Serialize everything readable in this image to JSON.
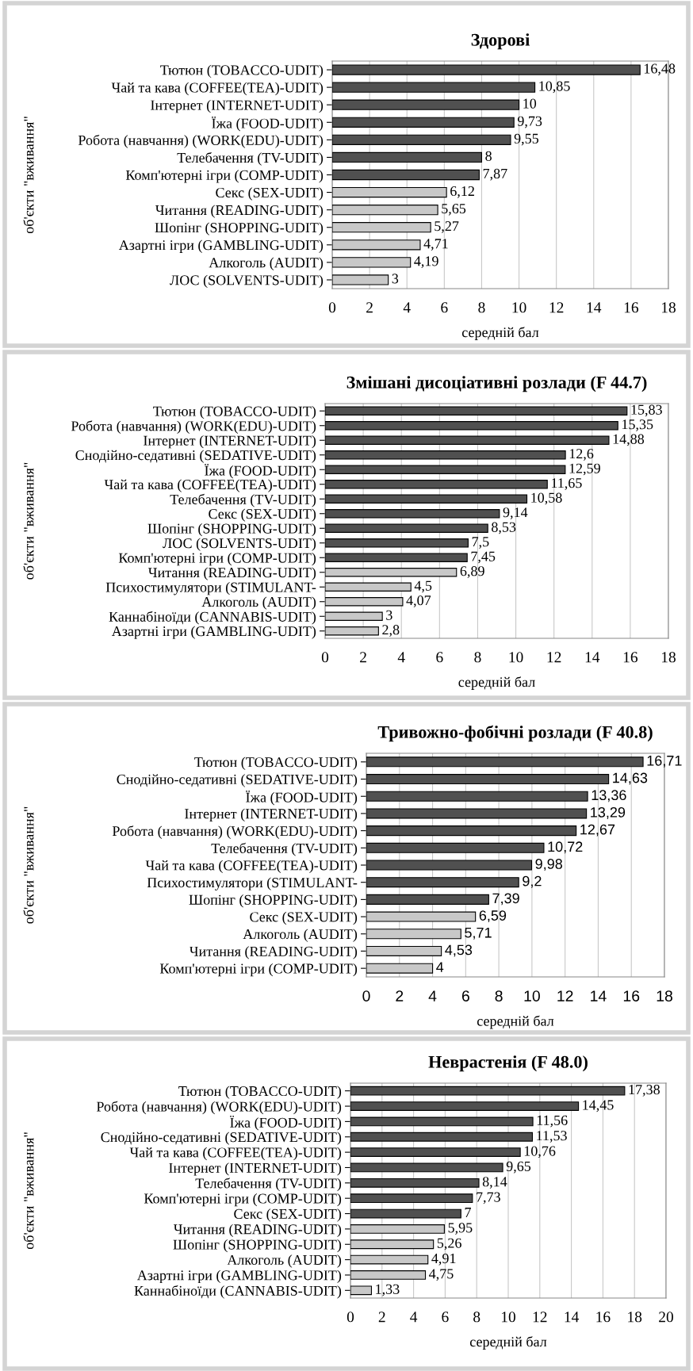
{
  "chart_data": [
    {
      "type": "bar",
      "orientation": "horizontal",
      "title": "Здорові",
      "xlabel": "середній бал",
      "ylabel": "об'єкти \"вживання\"",
      "grid": "x",
      "xlim": [
        0,
        18
      ],
      "xticks": [
        0,
        2,
        4,
        6,
        8,
        10,
        12,
        14,
        16,
        18
      ],
      "categories": [
        "Тютюн (TOBACCO-UDIT)",
        "Чай та кава (COFFEE(TEA)-UDIT)",
        "Інтернет (INTERNET-UDIT)",
        "Їжа (FOOD-UDIT)",
        "Робота (навчання) (WORK(EDU)-UDIT)",
        "Телебачення (TV-UDIT)",
        "Комп'ютерні ігри (COMP-UDIT)",
        "Секс (SEX-UDIT)",
        "Читання (READING-UDIT)",
        "Шопінг (SHOPPING-UDIT)",
        "Азартні ігри (GAMBLING-UDIT)",
        "Алкоголь (AUDIT)",
        "ЛОС (SOLVENTS-UDIT)"
      ],
      "values": [
        16.48,
        10.85,
        10,
        9.73,
        9.55,
        8,
        7.87,
        6.12,
        5.65,
        5.27,
        4.71,
        4.19,
        3
      ],
      "value_labels": [
        "16,48",
        "10,85",
        "10",
        "9,73",
        "9,55",
        "8",
        "7,87",
        "6,12",
        "5,65",
        "5,27",
        "4,71",
        "4,19",
        "3"
      ],
      "colors": [
        "#505050",
        "#505050",
        "#505050",
        "#505050",
        "#505050",
        "#505050",
        "#505050",
        "#c8c8c8",
        "#c8c8c8",
        "#c8c8c8",
        "#c8c8c8",
        "#c8c8c8",
        "#c8c8c8"
      ]
    },
    {
      "type": "bar",
      "orientation": "horizontal",
      "title": "Змішані дисоціативні розлади (F 44.7)",
      "xlabel": "середній бал",
      "ylabel": "об'єкти \"вживання\"",
      "grid": "x",
      "xlim": [
        0,
        18
      ],
      "xticks": [
        0,
        2,
        4,
        6,
        8,
        10,
        12,
        14,
        16,
        18
      ],
      "categories": [
        "Тютюн (TOBACCO-UDIT)",
        "Робота (навчання) (WORK(EDU)-UDIT)",
        "Інтернет (INTERNET-UDIT)",
        "Снодійно-седативні (SEDATIVE-UDIT)",
        "Їжа (FOOD-UDIT)",
        "Чай та кава (COFFEE(TEA)-UDIT)",
        "Телебачення (TV-UDIT)",
        "Секс (SEX-UDIT)",
        "Шопінг (SHOPPING-UDIT)",
        "ЛОС (SOLVENTS-UDIT)",
        "Комп'ютерні ігри (COMP-UDIT)",
        "Читання (READING-UDIT)",
        "Психостимулятори (STIMULANT-",
        "Алкоголь (AUDIT)",
        "Каннабіноїди (CANNABIS-UDIT)",
        "Азартні ігри (GAMBLING-UDIT)"
      ],
      "values": [
        15.83,
        15.35,
        14.88,
        12.6,
        12.59,
        11.65,
        10.58,
        9.14,
        8.53,
        7.5,
        7.45,
        6.89,
        4.5,
        4.07,
        3,
        2.8
      ],
      "value_labels": [
        "15,83",
        "15,35",
        "14,88",
        "12,6",
        "12,59",
        "11,65",
        "10,58",
        "9,14",
        "8,53",
        "7,5",
        "7,45",
        "6,89",
        "4,5",
        "4,07",
        "3",
        "2,8"
      ],
      "colors": [
        "#505050",
        "#505050",
        "#505050",
        "#505050",
        "#505050",
        "#505050",
        "#505050",
        "#505050",
        "#505050",
        "#505050",
        "#505050",
        "#c8c8c8",
        "#c8c8c8",
        "#c8c8c8",
        "#c8c8c8",
        "#c8c8c8"
      ]
    },
    {
      "type": "bar",
      "orientation": "horizontal",
      "title": "Тривожно-фобічні розлади (F 40.8)",
      "xlabel": "середній бал",
      "ylabel": "об'єкти \"вживання\"",
      "grid": "x",
      "xlim": [
        0,
        18
      ],
      "xticks": [
        0,
        2,
        4,
        6,
        8,
        10,
        12,
        14,
        16,
        18
      ],
      "categories": [
        "Тютюн (TOBACCO-UDIT)",
        "Снодійно-седативні (SEDATIVE-UDIT)",
        "Їжа (FOOD-UDIT)",
        "Інтернет (INTERNET-UDIT)",
        "Робота (навчання) (WORK(EDU)-UDIT)",
        "Телебачення (TV-UDIT)",
        "Чай та кава (COFFEE(TEA)-UDIT)",
        "Психостимулятори (STIMULANT-",
        "Шопінг (SHOPPING-UDIT)",
        "Секс (SEX-UDIT)",
        "Алкоголь (AUDIT)",
        "Читання (READING-UDIT)",
        "Комп'ютерні ігри (COMP-UDIT)"
      ],
      "values": [
        16.71,
        14.63,
        13.36,
        13.29,
        12.67,
        10.72,
        9.98,
        9.2,
        7.39,
        6.59,
        5.71,
        4.53,
        4
      ],
      "value_labels": [
        "16,71",
        "14,63",
        "13,36",
        "13,29",
        "12,67",
        "10,72",
        "9,98",
        "9,2",
        "7,39",
        "6,59",
        "5,71",
        "4,53",
        "4"
      ],
      "colors": [
        "#505050",
        "#505050",
        "#505050",
        "#505050",
        "#505050",
        "#505050",
        "#505050",
        "#505050",
        "#505050",
        "#c8c8c8",
        "#c8c8c8",
        "#c8c8c8",
        "#c8c8c8"
      ]
    },
    {
      "type": "bar",
      "orientation": "horizontal",
      "title": "Неврастенія (F 48.0)",
      "xlabel": "середній бал",
      "ylabel": "об'єкти \"вживання\"",
      "grid": "x",
      "xlim": [
        0,
        20
      ],
      "xticks": [
        0,
        2,
        4,
        6,
        8,
        10,
        12,
        14,
        16,
        18,
        20
      ],
      "categories": [
        "Тютюн (TOBACCO-UDIT)",
        "Робота (навчання) (WORK(EDU)-UDIT)",
        "Їжа (FOOD-UDIT)",
        "Снодійно-седативні (SEDATIVE-UDIT)",
        "Чай та кава (COFFEE(TEA)-UDIT)",
        "Інтернет (INTERNET-UDIT)",
        "Телебачення (TV-UDIT)",
        "Комп'ютерні ігри (COMP-UDIT)",
        "Секс (SEX-UDIT)",
        "Читання (READING-UDIT)",
        "Шопінг (SHOPPING-UDIT)",
        "Алкоголь (AUDIT)",
        "Азартні ігри (GAMBLING-UDIT)",
        "Каннабіноїди (CANNABIS-UDIT)"
      ],
      "values": [
        17.38,
        14.45,
        11.56,
        11.53,
        10.76,
        9.65,
        8.14,
        7.73,
        7,
        5.95,
        5.26,
        4.91,
        4.75,
        1.33
      ],
      "value_labels": [
        "17,38",
        "14,45",
        "11,56",
        "11,53",
        "10,76",
        "9,65",
        "8,14",
        "7,73",
        "7",
        "5,95",
        "5,26",
        "4,91",
        "4,75",
        "1,33"
      ],
      "colors": [
        "#505050",
        "#505050",
        "#505050",
        "#505050",
        "#505050",
        "#505050",
        "#505050",
        "#505050",
        "#505050",
        "#c8c8c8",
        "#c8c8c8",
        "#c8c8c8",
        "#c8c8c8",
        "#c8c8c8"
      ]
    }
  ]
}
